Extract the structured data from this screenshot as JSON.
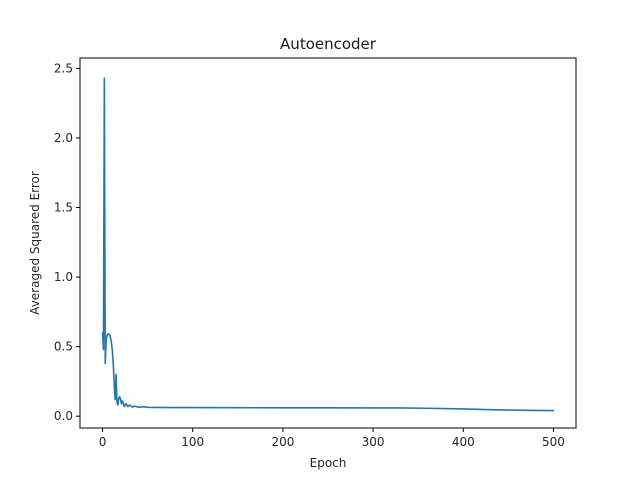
{
  "chart_data": {
    "type": "line",
    "title": "Autoencoder",
    "xlabel": "Epoch",
    "ylabel": "Averaged Squared Error",
    "xlim": [
      -25,
      525
    ],
    "ylim": [
      -0.085,
      2.575
    ],
    "xticks": [
      0,
      100,
      200,
      300,
      400,
      500
    ],
    "yticks": [
      0.0,
      0.5,
      1.0,
      1.5,
      2.0,
      2.5
    ],
    "ytick_labels": [
      "0.0",
      "0.5",
      "1.0",
      "1.5",
      "2.0",
      "2.5"
    ],
    "grid": false,
    "series": [
      {
        "color": "#1f77b4",
        "x": [
          0,
          1,
          2,
          3,
          4,
          5,
          6,
          7,
          8,
          9,
          10,
          11,
          12,
          13,
          14,
          15,
          16,
          17,
          18,
          19,
          20,
          21,
          22,
          24,
          26,
          28,
          30,
          33,
          36,
          40,
          45,
          50,
          60,
          80,
          100,
          150,
          200,
          250,
          300,
          330,
          360,
          400,
          430,
          460,
          480,
          500
        ],
        "y": [
          0.6,
          0.48,
          2.43,
          0.38,
          0.55,
          0.58,
          0.59,
          0.59,
          0.58,
          0.56,
          0.52,
          0.46,
          0.36,
          0.22,
          0.12,
          0.3,
          0.1,
          0.08,
          0.13,
          0.14,
          0.12,
          0.09,
          0.11,
          0.07,
          0.09,
          0.07,
          0.08,
          0.065,
          0.072,
          0.064,
          0.068,
          0.064,
          0.063,
          0.062,
          0.062,
          0.061,
          0.06,
          0.06,
          0.059,
          0.059,
          0.057,
          0.052,
          0.047,
          0.043,
          0.041,
          0.04
        ]
      }
    ]
  }
}
